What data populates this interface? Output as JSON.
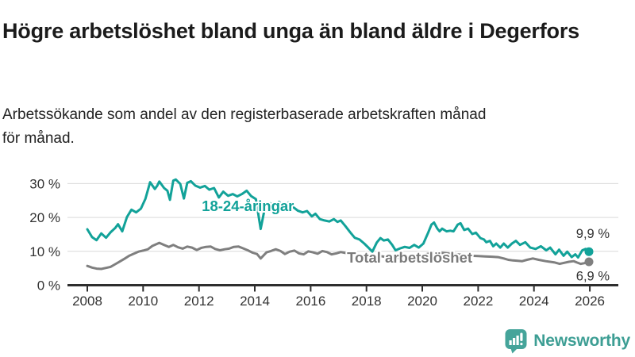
{
  "header": {
    "title": "Högre arbetslöshet bland unga än bland äldre i Degerfors",
    "subtitle": "Arbetssökande som andel av den registerbaserade arbetskraften månad\nför månad."
  },
  "branding": {
    "logo_text": "Newsworthy",
    "logo_icon": "bar-chart-speech-bubble-icon",
    "logo_color": "#45a49a",
    "logo_text_color": "#3d9e94"
  },
  "colors": {
    "youth_line": "#12a299",
    "total_line": "#7f7f7f",
    "total_label": "#7a7a7a",
    "axis": "#2e2e2e",
    "tick_text": "#333333",
    "grid": "#d9d9d9",
    "end_label_text": "#333333"
  },
  "chart_data": {
    "type": "line",
    "title": "Högre arbetslöshet bland unga än bland äldre i Degerfors",
    "subtitle": "Arbetssökande som andel av den registerbaserade arbetskraften månad för månad.",
    "xlabel": "",
    "ylabel": "",
    "grid": true,
    "xlim": [
      2007.3,
      2027.0
    ],
    "ylim": [
      0,
      32
    ],
    "y_ticks": [
      {
        "value": 0,
        "label": "0 %"
      },
      {
        "value": 10,
        "label": "10 %"
      },
      {
        "value": 20,
        "label": "20 %"
      },
      {
        "value": 30,
        "label": "30 %"
      }
    ],
    "x_ticks": [
      {
        "value": 2008,
        "label": "2008"
      },
      {
        "value": 2010,
        "label": "2010"
      },
      {
        "value": 2012,
        "label": "2012"
      },
      {
        "value": 2014,
        "label": "2014"
      },
      {
        "value": 2016,
        "label": "2016"
      },
      {
        "value": 2018,
        "label": "2018"
      },
      {
        "value": 2020,
        "label": "2020"
      },
      {
        "value": 2022,
        "label": "2022"
      },
      {
        "value": 2024,
        "label": "2024"
      },
      {
        "value": 2026,
        "label": "2026"
      }
    ],
    "series": [
      {
        "name": "18-24-åringar",
        "color": "#12a299",
        "label_color": "#12a299",
        "label_at": {
          "x": 2012.1,
          "y": 21.9
        },
        "end_label": "9,9 %",
        "end_value": 9.9,
        "points": [
          [
            2008.0,
            16.5
          ],
          [
            2008.17,
            14.2
          ],
          [
            2008.33,
            13.3
          ],
          [
            2008.5,
            15.3
          ],
          [
            2008.67,
            14.0
          ],
          [
            2008.83,
            15.6
          ],
          [
            2009.0,
            16.9
          ],
          [
            2009.1,
            18.0
          ],
          [
            2009.25,
            15.9
          ],
          [
            2009.42,
            20.1
          ],
          [
            2009.58,
            22.3
          ],
          [
            2009.75,
            21.5
          ],
          [
            2009.92,
            22.6
          ],
          [
            2010.08,
            25.5
          ],
          [
            2010.25,
            30.4
          ],
          [
            2010.42,
            28.4
          ],
          [
            2010.5,
            29.3
          ],
          [
            2010.58,
            30.6
          ],
          [
            2010.75,
            28.7
          ],
          [
            2010.87,
            27.9
          ],
          [
            2010.96,
            25.2
          ],
          [
            2011.08,
            30.9
          ],
          [
            2011.17,
            31.2
          ],
          [
            2011.33,
            29.9
          ],
          [
            2011.46,
            25.6
          ],
          [
            2011.58,
            30.2
          ],
          [
            2011.71,
            30.7
          ],
          [
            2011.87,
            29.4
          ],
          [
            2012.04,
            28.8
          ],
          [
            2012.21,
            29.3
          ],
          [
            2012.37,
            28.2
          ],
          [
            2012.54,
            28.7
          ],
          [
            2012.71,
            25.9
          ],
          [
            2012.87,
            27.6
          ],
          [
            2013.04,
            26.4
          ],
          [
            2013.21,
            26.9
          ],
          [
            2013.37,
            26.2
          ],
          [
            2013.54,
            26.9
          ],
          [
            2013.71,
            27.9
          ],
          [
            2013.87,
            26.3
          ],
          [
            2014.04,
            25.4
          ],
          [
            2014.21,
            16.6
          ],
          [
            2014.37,
            23.2
          ],
          [
            2014.54,
            24.2
          ],
          [
            2014.71,
            23.4
          ],
          [
            2014.87,
            24.6
          ],
          [
            2015.04,
            23.2
          ],
          [
            2015.21,
            24.4
          ],
          [
            2015.37,
            23.1
          ],
          [
            2015.54,
            22.0
          ],
          [
            2015.71,
            21.5
          ],
          [
            2015.87,
            21.9
          ],
          [
            2016.04,
            20.3
          ],
          [
            2016.17,
            21.1
          ],
          [
            2016.33,
            19.5
          ],
          [
            2016.5,
            19.1
          ],
          [
            2016.67,
            18.8
          ],
          [
            2016.83,
            19.5
          ],
          [
            2016.96,
            18.7
          ],
          [
            2017.08,
            19.1
          ],
          [
            2017.25,
            17.4
          ],
          [
            2017.42,
            15.6
          ],
          [
            2017.58,
            14.0
          ],
          [
            2017.75,
            13.5
          ],
          [
            2017.92,
            12.3
          ],
          [
            2018.08,
            11.0
          ],
          [
            2018.21,
            9.9
          ],
          [
            2018.37,
            12.6
          ],
          [
            2018.5,
            13.9
          ],
          [
            2018.62,
            13.2
          ],
          [
            2018.77,
            13.5
          ],
          [
            2018.92,
            11.9
          ],
          [
            2019.04,
            10.3
          ],
          [
            2019.21,
            10.9
          ],
          [
            2019.37,
            11.3
          ],
          [
            2019.54,
            11.0
          ],
          [
            2019.71,
            11.9
          ],
          [
            2019.87,
            11.1
          ],
          [
            2020.04,
            12.3
          ],
          [
            2020.21,
            15.5
          ],
          [
            2020.33,
            17.9
          ],
          [
            2020.42,
            18.5
          ],
          [
            2020.54,
            16.7
          ],
          [
            2020.62,
            15.9
          ],
          [
            2020.71,
            16.7
          ],
          [
            2020.87,
            15.9
          ],
          [
            2021.0,
            16.1
          ],
          [
            2021.12,
            15.9
          ],
          [
            2021.27,
            17.9
          ],
          [
            2021.37,
            18.3
          ],
          [
            2021.5,
            16.3
          ],
          [
            2021.64,
            16.7
          ],
          [
            2021.79,
            15.1
          ],
          [
            2021.92,
            15.5
          ],
          [
            2022.08,
            13.9
          ],
          [
            2022.21,
            13.5
          ],
          [
            2022.29,
            12.7
          ],
          [
            2022.42,
            13.1
          ],
          [
            2022.54,
            11.5
          ],
          [
            2022.65,
            12.3
          ],
          [
            2022.79,
            11.1
          ],
          [
            2022.92,
            12.3
          ],
          [
            2023.06,
            11.1
          ],
          [
            2023.21,
            12.3
          ],
          [
            2023.35,
            13.1
          ],
          [
            2023.5,
            11.9
          ],
          [
            2023.69,
            12.7
          ],
          [
            2023.87,
            11.1
          ],
          [
            2024.06,
            10.7
          ],
          [
            2024.25,
            11.5
          ],
          [
            2024.44,
            10.3
          ],
          [
            2024.58,
            11.1
          ],
          [
            2024.77,
            9.1
          ],
          [
            2024.9,
            10.5
          ],
          [
            2025.06,
            8.7
          ],
          [
            2025.19,
            9.9
          ],
          [
            2025.35,
            8.3
          ],
          [
            2025.48,
            9.1
          ],
          [
            2025.58,
            8.2
          ],
          [
            2025.73,
            10.3
          ],
          [
            2025.85,
            10.7
          ],
          [
            2025.97,
            9.9
          ]
        ]
      },
      {
        "name": "Total arbetslöshet",
        "color": "#7f7f7f",
        "label_color": "#7a7a7a",
        "label_at": {
          "x": 2017.3,
          "y": 6.7
        },
        "end_label": "6,9 %",
        "end_value": 6.9,
        "points": [
          [
            2008.0,
            5.7
          ],
          [
            2008.17,
            5.2
          ],
          [
            2008.33,
            4.9
          ],
          [
            2008.5,
            4.8
          ],
          [
            2008.67,
            5.1
          ],
          [
            2008.83,
            5.4
          ],
          [
            2009.0,
            6.2
          ],
          [
            2009.17,
            7.0
          ],
          [
            2009.33,
            7.8
          ],
          [
            2009.5,
            8.7
          ],
          [
            2009.67,
            9.3
          ],
          [
            2009.83,
            9.9
          ],
          [
            2010.0,
            10.2
          ],
          [
            2010.17,
            10.6
          ],
          [
            2010.33,
            11.6
          ],
          [
            2010.5,
            12.2
          ],
          [
            2010.58,
            12.5
          ],
          [
            2010.75,
            11.9
          ],
          [
            2010.92,
            11.3
          ],
          [
            2011.08,
            11.9
          ],
          [
            2011.25,
            11.2
          ],
          [
            2011.42,
            10.8
          ],
          [
            2011.58,
            11.4
          ],
          [
            2011.75,
            11.1
          ],
          [
            2011.92,
            10.4
          ],
          [
            2012.08,
            11.0
          ],
          [
            2012.25,
            11.3
          ],
          [
            2012.42,
            11.4
          ],
          [
            2012.58,
            10.7
          ],
          [
            2012.75,
            10.3
          ],
          [
            2012.92,
            10.6
          ],
          [
            2013.08,
            10.8
          ],
          [
            2013.25,
            11.3
          ],
          [
            2013.42,
            11.4
          ],
          [
            2013.58,
            10.9
          ],
          [
            2013.75,
            10.3
          ],
          [
            2013.92,
            9.6
          ],
          [
            2014.08,
            9.2
          ],
          [
            2014.21,
            7.9
          ],
          [
            2014.42,
            9.7
          ],
          [
            2014.58,
            10.1
          ],
          [
            2014.75,
            10.6
          ],
          [
            2014.92,
            10.1
          ],
          [
            2015.08,
            9.2
          ],
          [
            2015.25,
            9.9
          ],
          [
            2015.42,
            10.2
          ],
          [
            2015.58,
            9.4
          ],
          [
            2015.75,
            9.1
          ],
          [
            2015.92,
            10.0
          ],
          [
            2016.08,
            9.7
          ],
          [
            2016.25,
            9.3
          ],
          [
            2016.42,
            10.1
          ],
          [
            2016.58,
            9.8
          ],
          [
            2016.75,
            9.1
          ],
          [
            2016.92,
            9.4
          ],
          [
            2017.08,
            9.8
          ],
          [
            2017.25,
            9.5
          ],
          [
            2017.5,
            9.2
          ],
          [
            2017.75,
            8.9
          ],
          [
            2018.0,
            8.6
          ],
          [
            2018.25,
            8.4
          ],
          [
            2018.5,
            8.6
          ],
          [
            2018.75,
            8.3
          ],
          [
            2019.0,
            8.1
          ],
          [
            2019.25,
            8.0
          ],
          [
            2019.5,
            8.2
          ],
          [
            2019.75,
            8.4
          ],
          [
            2020.0,
            8.8
          ],
          [
            2020.25,
            9.4
          ],
          [
            2020.5,
            9.7
          ],
          [
            2020.75,
            9.5
          ],
          [
            2021.0,
            9.3
          ],
          [
            2021.25,
            9.1
          ],
          [
            2021.5,
            8.9
          ],
          [
            2021.75,
            8.7
          ],
          [
            2022.0,
            8.6
          ],
          [
            2022.25,
            8.5
          ],
          [
            2022.5,
            8.4
          ],
          [
            2022.71,
            8.3
          ],
          [
            2022.92,
            7.9
          ],
          [
            2023.08,
            7.5
          ],
          [
            2023.25,
            7.3
          ],
          [
            2023.42,
            7.2
          ],
          [
            2023.58,
            7.1
          ],
          [
            2023.75,
            7.5
          ],
          [
            2023.96,
            7.9
          ],
          [
            2024.17,
            7.5
          ],
          [
            2024.42,
            7.1
          ],
          [
            2024.58,
            6.9
          ],
          [
            2024.75,
            6.7
          ],
          [
            2024.92,
            6.3
          ],
          [
            2025.08,
            6.6
          ],
          [
            2025.25,
            6.9
          ],
          [
            2025.42,
            7.1
          ],
          [
            2025.54,
            6.7
          ],
          [
            2025.67,
            6.3
          ],
          [
            2025.81,
            6.5
          ],
          [
            2025.97,
            6.9
          ]
        ]
      }
    ]
  }
}
